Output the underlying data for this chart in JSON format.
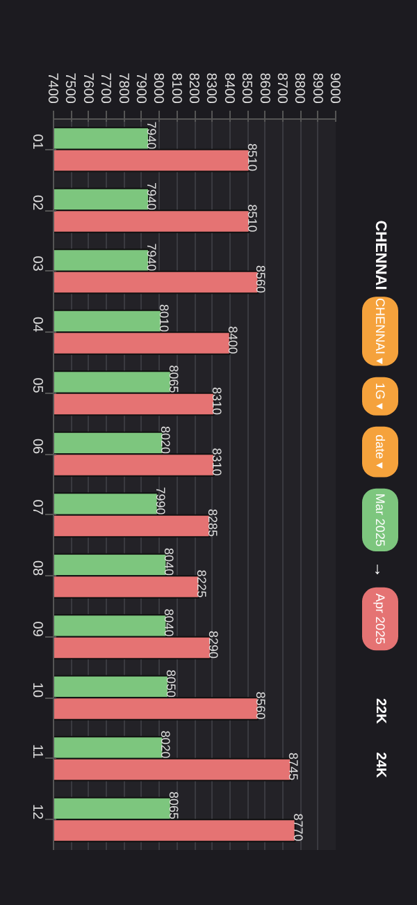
{
  "chart_data": {
    "type": "bar",
    "orientation": "horizontal",
    "title": "CHENNAI",
    "categories": [
      "01",
      "02",
      "03",
      "04",
      "05",
      "06",
      "07",
      "08",
      "09",
      "10",
      "11",
      "12"
    ],
    "series": [
      {
        "name": "Mar 2025",
        "color": "#7dc67e",
        "values": [
          7940,
          7940,
          7940,
          8010,
          8065,
          8020,
          7990,
          8040,
          8040,
          8050,
          8020,
          8065
        ]
      },
      {
        "name": "Apr 2025",
        "color": "#e57373",
        "values": [
          8510,
          8510,
          8560,
          8400,
          8310,
          8310,
          8285,
          8225,
          8290,
          8560,
          8745,
          8770
        ]
      }
    ],
    "xlim": [
      7400,
      9000
    ],
    "xticks": [
      7400,
      7500,
      7600,
      7700,
      7800,
      7900,
      8000,
      8100,
      8200,
      8300,
      8400,
      8500,
      8600,
      8700,
      8800,
      8900,
      9000
    ],
    "grid": "x",
    "legend": "right",
    "data_labels": true,
    "annotations": [
      "CHENNAI ▾",
      "1G ▾",
      "date ▾",
      "→",
      "22K",
      "24K"
    ]
  }
}
